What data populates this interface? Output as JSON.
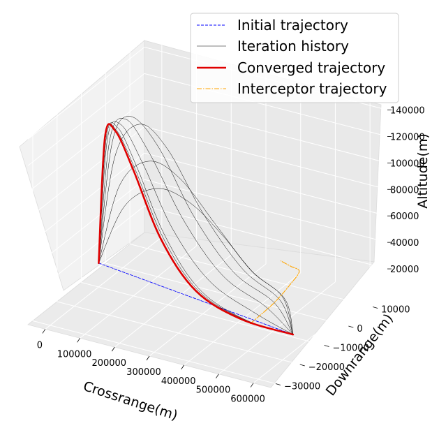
{
  "chart_data": {
    "type": "line3d",
    "title": "",
    "xlabel": "Crossrange(m)",
    "ylabel": "Downrange(m)",
    "zlabel": "Altitude(m)",
    "xlim": [
      -50000,
      650000
    ],
    "ylim": [
      -32000,
      16000
    ],
    "zlim": [
      0,
      145000
    ],
    "x_ticks": [
      "0",
      "100000",
      "200000",
      "300000",
      "400000",
      "500000",
      "600000"
    ],
    "y_ticks": [
      "−30000",
      "−20000",
      "−10000",
      "0",
      "10000"
    ],
    "z_ticks": [
      "20000",
      "40000",
      "60000",
      "80000",
      "100000",
      "120000",
      "140000"
    ],
    "grid": true,
    "legend_position": "upper-right",
    "legend": [
      {
        "label": "Initial trajectory",
        "color": "#0000ff",
        "style": "dashed"
      },
      {
        "label": "Iteration history",
        "color": "#000000",
        "style": "solid"
      },
      {
        "label": "Converged trajectory",
        "color": "#e00000",
        "style": "solid-thick"
      },
      {
        "label": "Interceptor trajectory",
        "color": "#ffa500",
        "style": "dashdot"
      }
    ],
    "series": [
      {
        "label_ref": 0,
        "points": [
          [
            0,
            -10000,
            18000
          ],
          [
            560000,
            -10000,
            2000
          ]
        ]
      },
      {
        "label_ref": 1,
        "points": [
          [
            0,
            -10000,
            18000
          ],
          [
            60000,
            -8000,
            62000
          ],
          [
            140000,
            -6000,
            78000
          ],
          [
            220000,
            -4000,
            70000
          ],
          [
            300000,
            -2000,
            48000
          ],
          [
            380000,
            -1000,
            24000
          ],
          [
            460000,
            0,
            9000
          ],
          [
            560000,
            -10000,
            2000
          ]
        ]
      },
      {
        "label_ref": 1,
        "points": [
          [
            0,
            -10000,
            18000
          ],
          [
            50000,
            -8500,
            78000
          ],
          [
            120000,
            -6500,
            98000
          ],
          [
            200000,
            -5000,
            88000
          ],
          [
            290000,
            -3000,
            56000
          ],
          [
            380000,
            -1500,
            26000
          ],
          [
            470000,
            -500,
            9000
          ],
          [
            560000,
            -10000,
            2000
          ]
        ]
      },
      {
        "label_ref": 1,
        "points": [
          [
            0,
            -10000,
            18000
          ],
          [
            40000,
            -9000,
            100000
          ],
          [
            100000,
            -7500,
            126000
          ],
          [
            170000,
            -6000,
            110000
          ],
          [
            260000,
            -4000,
            64000
          ],
          [
            360000,
            -2000,
            26000
          ],
          [
            460000,
            -1000,
            8000
          ],
          [
            560000,
            -10000,
            2000
          ]
        ]
      },
      {
        "label_ref": 1,
        "points": [
          [
            0,
            -10000,
            18000
          ],
          [
            35000,
            -9500,
            110000
          ],
          [
            80000,
            -8500,
            132000
          ],
          [
            150000,
            -7000,
            112000
          ],
          [
            240000,
            -5000,
            62000
          ],
          [
            340000,
            -3000,
            24000
          ],
          [
            450000,
            -2000,
            7000
          ],
          [
            560000,
            -10000,
            2000
          ]
        ]
      },
      {
        "label_ref": 1,
        "points": [
          [
            0,
            -10000,
            18000
          ],
          [
            30000,
            -9800,
            112000
          ],
          [
            70000,
            -9000,
            130000
          ],
          [
            130000,
            -8000,
            108000
          ],
          [
            220000,
            -6000,
            58000
          ],
          [
            320000,
            -4500,
            22000
          ],
          [
            440000,
            -4000,
            6000
          ],
          [
            560000,
            -10000,
            2000
          ]
        ]
      },
      {
        "label_ref": 1,
        "points": [
          [
            0,
            -10000,
            18000
          ],
          [
            25000,
            -10000,
            113000
          ],
          [
            60000,
            -9500,
            126000
          ],
          [
            120000,
            -9000,
            100000
          ],
          [
            200000,
            -8000,
            54000
          ],
          [
            300000,
            -7000,
            20000
          ],
          [
            430000,
            -7000,
            5000
          ],
          [
            560000,
            -10000,
            2000
          ]
        ]
      },
      {
        "label_ref": 1,
        "points": [
          [
            0,
            -10000,
            18000
          ],
          [
            22000,
            -10000,
            114000
          ],
          [
            55000,
            -10000,
            124000
          ],
          [
            110000,
            -10000,
            98000
          ],
          [
            190000,
            -10000,
            52000
          ],
          [
            290000,
            -10000,
            18000
          ],
          [
            420000,
            -10000,
            4000
          ],
          [
            560000,
            -10000,
            2000
          ]
        ]
      },
      {
        "label_ref": 1,
        "points": [
          [
            0,
            -10000,
            18000
          ],
          [
            20000,
            -10000,
            114000
          ],
          [
            50000,
            -10000,
            122000
          ],
          [
            105000,
            -10000,
            96000
          ],
          [
            185000,
            -10000,
            50000
          ],
          [
            285000,
            -10000,
            17000
          ],
          [
            415000,
            -10000,
            4000
          ],
          [
            560000,
            -10000,
            2000
          ]
        ]
      },
      {
        "label_ref": 2,
        "points": [
          [
            0,
            -10000,
            18000
          ],
          [
            18000,
            -10000,
            114000
          ],
          [
            48000,
            -10000,
            121000
          ],
          [
            100000,
            -10000,
            95000
          ],
          [
            180000,
            -10000,
            48000
          ],
          [
            280000,
            -10000,
            16000
          ],
          [
            410000,
            -10000,
            3500
          ],
          [
            560000,
            -10000,
            2000
          ]
        ]
      },
      {
        "label_ref": 3,
        "points": [
          [
            430000,
            -9000,
            0
          ],
          [
            450000,
            -2000,
            7000
          ],
          [
            470000,
            2000,
            17000
          ],
          [
            480000,
            4000,
            24000
          ],
          [
            470000,
            2000,
            30000
          ],
          [
            455000,
            0,
            36000
          ]
        ]
      }
    ]
  }
}
